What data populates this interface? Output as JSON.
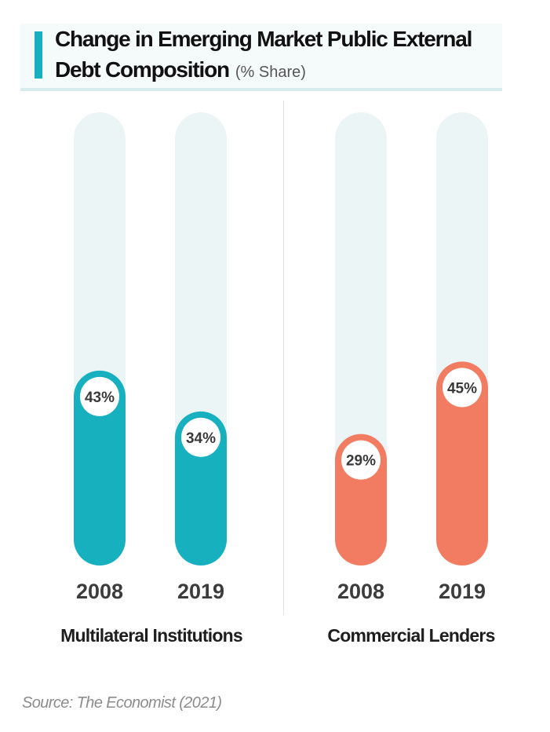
{
  "title": {
    "line1": "Change in Emerging Market Public External",
    "line2": "Debt Composition",
    "unit": "(% Share)"
  },
  "chart_data": {
    "type": "bar",
    "groups": [
      {
        "name": "Multilateral Institutions",
        "color": "#17b0bf",
        "bars": [
          {
            "category": "2008",
            "value": 43,
            "label": "43%"
          },
          {
            "category": "2019",
            "value": 34,
            "label": "34%"
          }
        ]
      },
      {
        "name": "Commercial Lenders",
        "color": "#f27c61",
        "bars": [
          {
            "category": "2008",
            "value": 29,
            "label": "29%"
          },
          {
            "category": "2019",
            "value": 45,
            "label": "45%"
          }
        ]
      }
    ],
    "ylim": [
      0,
      100
    ],
    "track_color": "#ecf5f6",
    "grid": false,
    "legend": "none"
  },
  "source": "Source: The Economist (2021)"
}
